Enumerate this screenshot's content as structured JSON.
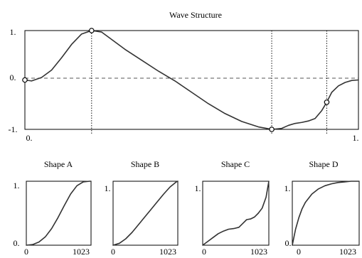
{
  "chart_data": [
    {
      "type": "line",
      "title": "Wave  Structure",
      "xlim": [
        0,
        1
      ],
      "ylim": [
        -1,
        1
      ],
      "x_tick_labels": [
        "0.",
        "1."
      ],
      "y_tick_labels": [
        "1.",
        "0.",
        "-1."
      ],
      "x": [
        0,
        0.02,
        0.05,
        0.08,
        0.11,
        0.14,
        0.17,
        0.2,
        0.23,
        0.26,
        0.3,
        0.35,
        0.4,
        0.45,
        0.5,
        0.55,
        0.6,
        0.65,
        0.7,
        0.74,
        0.77,
        0.79,
        0.81,
        0.83,
        0.85,
        0.87,
        0.89,
        0.905,
        0.92,
        0.94,
        0.96,
        0.98,
        1.0
      ],
      "y": [
        0,
        -0.02,
        0.05,
        0.2,
        0.45,
        0.72,
        0.93,
        1.0,
        0.97,
        0.82,
        0.62,
        0.4,
        0.18,
        -0.02,
        -0.25,
        -0.48,
        -0.68,
        -0.84,
        -0.95,
        -1.0,
        -0.98,
        -0.92,
        -0.88,
        -0.86,
        -0.83,
        -0.78,
        -0.62,
        -0.45,
        -0.25,
        -0.12,
        -0.05,
        -0.01,
        0.0
      ],
      "handles": [
        {
          "x": 0.0,
          "y": 0.0
        },
        {
          "x": 0.2,
          "y": 1.0
        },
        {
          "x": 0.74,
          "y": -1.0
        },
        {
          "x": 0.905,
          "y": -0.45
        }
      ],
      "vertical_markers": [
        0.2,
        0.74,
        0.905
      ]
    },
    {
      "type": "line",
      "title": "Shape A",
      "xlim": [
        0,
        1023
      ],
      "ylim": [
        0,
        1
      ],
      "x_tick_labels": [
        "0",
        "1023"
      ],
      "y_tick_labels": [
        "1.",
        "0."
      ],
      "x": [
        0,
        100,
        200,
        300,
        400,
        500,
        600,
        700,
        800,
        900,
        1000,
        1023
      ],
      "y": [
        0.0,
        0.01,
        0.05,
        0.13,
        0.26,
        0.43,
        0.62,
        0.8,
        0.93,
        0.99,
        1.0,
        1.0
      ]
    },
    {
      "type": "line",
      "title": "Shape B",
      "xlim": [
        0,
        1023
      ],
      "ylim": [
        0,
        1
      ],
      "x_tick_labels": [
        "0",
        "1023"
      ],
      "y_tick_labels": [
        "1."
      ],
      "x": [
        0,
        100,
        200,
        300,
        400,
        500,
        600,
        700,
        800,
        900,
        1000,
        1023
      ],
      "y": [
        0.0,
        0.03,
        0.1,
        0.2,
        0.32,
        0.44,
        0.56,
        0.68,
        0.8,
        0.91,
        0.99,
        1.0
      ]
    },
    {
      "type": "line",
      "title": "Shape C",
      "xlim": [
        0,
        1023
      ],
      "ylim": [
        0,
        1
      ],
      "x_tick_labels": [
        "0",
        "1023"
      ],
      "y_tick_labels": [
        "1."
      ],
      "x": [
        0,
        80,
        160,
        240,
        320,
        400,
        480,
        560,
        620,
        680,
        740,
        800,
        860,
        920,
        980,
        1023
      ],
      "y": [
        0.0,
        0.06,
        0.12,
        0.18,
        0.22,
        0.25,
        0.26,
        0.28,
        0.34,
        0.4,
        0.41,
        0.44,
        0.5,
        0.58,
        0.75,
        1.0
      ]
    },
    {
      "type": "line",
      "title": "Shape D",
      "xlim": [
        0,
        1023
      ],
      "ylim": [
        0,
        1
      ],
      "x_tick_labels": [
        "0",
        "1023"
      ],
      "y_tick_labels": [
        "1.",
        "0."
      ],
      "x": [
        0,
        50,
        100,
        150,
        200,
        300,
        400,
        500,
        600,
        700,
        800,
        900,
        1023
      ],
      "y": [
        0.0,
        0.25,
        0.43,
        0.57,
        0.67,
        0.8,
        0.88,
        0.93,
        0.96,
        0.98,
        0.99,
        1.0,
        1.0
      ]
    }
  ]
}
